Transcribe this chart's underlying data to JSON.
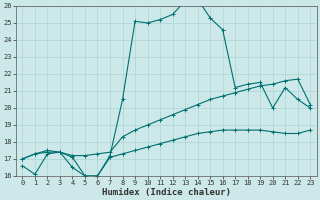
{
  "xlabel": "Humidex (Indice chaleur)",
  "xlim": [
    -0.5,
    23.5
  ],
  "ylim": [
    16,
    26
  ],
  "xticks": [
    0,
    1,
    2,
    3,
    4,
    5,
    6,
    7,
    8,
    9,
    10,
    11,
    12,
    13,
    14,
    15,
    16,
    17,
    18,
    19,
    20,
    21,
    22,
    23
  ],
  "yticks": [
    16,
    17,
    18,
    19,
    20,
    21,
    22,
    23,
    24,
    25,
    26
  ],
  "bg_color": "#cce8e8",
  "line_color": "#007070",
  "grid_color": "#aad4d4",
  "line1_x": [
    0,
    1,
    2,
    3,
    4,
    5,
    6,
    7,
    8,
    9,
    10,
    11,
    12,
    13,
    14,
    15,
    16,
    17,
    18,
    19,
    20,
    21,
    22,
    23
  ],
  "line1_y": [
    16.6,
    16.1,
    17.3,
    17.4,
    17.1,
    16.0,
    16.0,
    17.2,
    20.5,
    25.1,
    25.0,
    25.2,
    25.5,
    26.3,
    26.4,
    25.3,
    24.6,
    21.2,
    21.4,
    21.5,
    20.0,
    21.2,
    20.5,
    20.0
  ],
  "line2_x": [
    0,
    1,
    2,
    3,
    4,
    5,
    6,
    7,
    8,
    9,
    10,
    11,
    12,
    13,
    14,
    15,
    16,
    17,
    18,
    19,
    20,
    21,
    22,
    23
  ],
  "line2_y": [
    17.0,
    17.3,
    17.5,
    17.4,
    17.2,
    17.2,
    17.3,
    17.4,
    18.3,
    18.7,
    19.0,
    19.3,
    19.6,
    19.9,
    20.2,
    20.5,
    20.7,
    20.9,
    21.1,
    21.3,
    21.4,
    21.6,
    21.7,
    20.2
  ],
  "line3_x": [
    0,
    1,
    2,
    3,
    4,
    5,
    6,
    7,
    8,
    9,
    10,
    11,
    12,
    13,
    14,
    15,
    16,
    17,
    18,
    19,
    20,
    21,
    22,
    23
  ],
  "line3_y": [
    17.0,
    17.3,
    17.4,
    17.4,
    16.5,
    16.0,
    16.0,
    17.1,
    17.3,
    17.5,
    17.7,
    17.9,
    18.1,
    18.3,
    18.5,
    18.6,
    18.7,
    18.7,
    18.7,
    18.7,
    18.6,
    18.5,
    18.5,
    18.7
  ]
}
